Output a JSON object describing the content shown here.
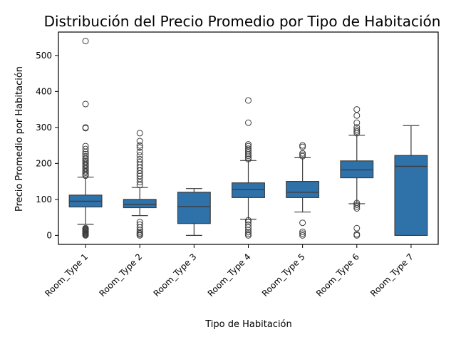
{
  "chart_data": {
    "type": "box",
    "title": "Distribución del Precio Promedio por Tipo de Habitación",
    "xlabel": "Tipo de Habitación",
    "ylabel": "Precio Promedio por Habitación",
    "categories": [
      "Room_Type 1",
      "Room_Type 2",
      "Room_Type 3",
      "Room_Type 4",
      "Room_Type 5",
      "Room_Type 6",
      "Room_Type 7"
    ],
    "yticks": [
      0,
      100,
      200,
      300,
      400,
      500
    ],
    "ylim": [
      -25,
      565
    ],
    "color": "#2f72aa",
    "boxes": [
      {
        "name": "Room_Type 1",
        "whisker_low": 31,
        "q1": 79,
        "median": 95,
        "q3": 112,
        "whisker_high": 162,
        "outliers": [
          0,
          2,
          4,
          6,
          8,
          10,
          12,
          14,
          16,
          18,
          20,
          166,
          170,
          174,
          178,
          182,
          186,
          190,
          194,
          198,
          202,
          206,
          210,
          214,
          220,
          226,
          232,
          240,
          248,
          298,
          300,
          365,
          540
        ]
      },
      {
        "name": "Room_Type 2",
        "whisker_low": 55,
        "q1": 77,
        "median": 86,
        "q3": 100,
        "whisker_high": 133,
        "outliers": [
          0,
          3,
          6,
          10,
          15,
          22,
          30,
          37,
          140,
          148,
          157,
          165,
          172,
          180,
          188,
          196,
          204,
          212,
          222,
          232,
          244,
          250,
          262,
          284
        ]
      },
      {
        "name": "Room_Type 3",
        "whisker_low": 0,
        "q1": 33,
        "median": 80,
        "q3": 120,
        "whisker_high": 130,
        "outliers": []
      },
      {
        "name": "Room_Type 4",
        "whisker_low": 45,
        "q1": 105,
        "median": 128,
        "q3": 146,
        "whisker_high": 208,
        "outliers": [
          0,
          4,
          9,
          15,
          22,
          30,
          37,
          42,
          212,
          216,
          221,
          226,
          231,
          236,
          241,
          248,
          253,
          313,
          375
        ]
      },
      {
        "name": "Room_Type 5",
        "whisker_low": 65,
        "q1": 105,
        "median": 120,
        "q3": 150,
        "whisker_high": 216,
        "outliers": [
          0,
          5,
          10,
          35,
          220,
          224,
          228,
          246,
          250
        ]
      },
      {
        "name": "Room_Type 6",
        "whisker_low": 88,
        "q1": 160,
        "median": 182,
        "q3": 207,
        "whisker_high": 278,
        "outliers": [
          0,
          3,
          20,
          75,
          80,
          85,
          90,
          284,
          289,
          294,
          300,
          313,
          333,
          350
        ]
      },
      {
        "name": "Room_Type 7",
        "whisker_low": 0,
        "q1": 0,
        "median": 192,
        "q3": 222,
        "whisker_high": 305,
        "outliers": []
      }
    ]
  }
}
